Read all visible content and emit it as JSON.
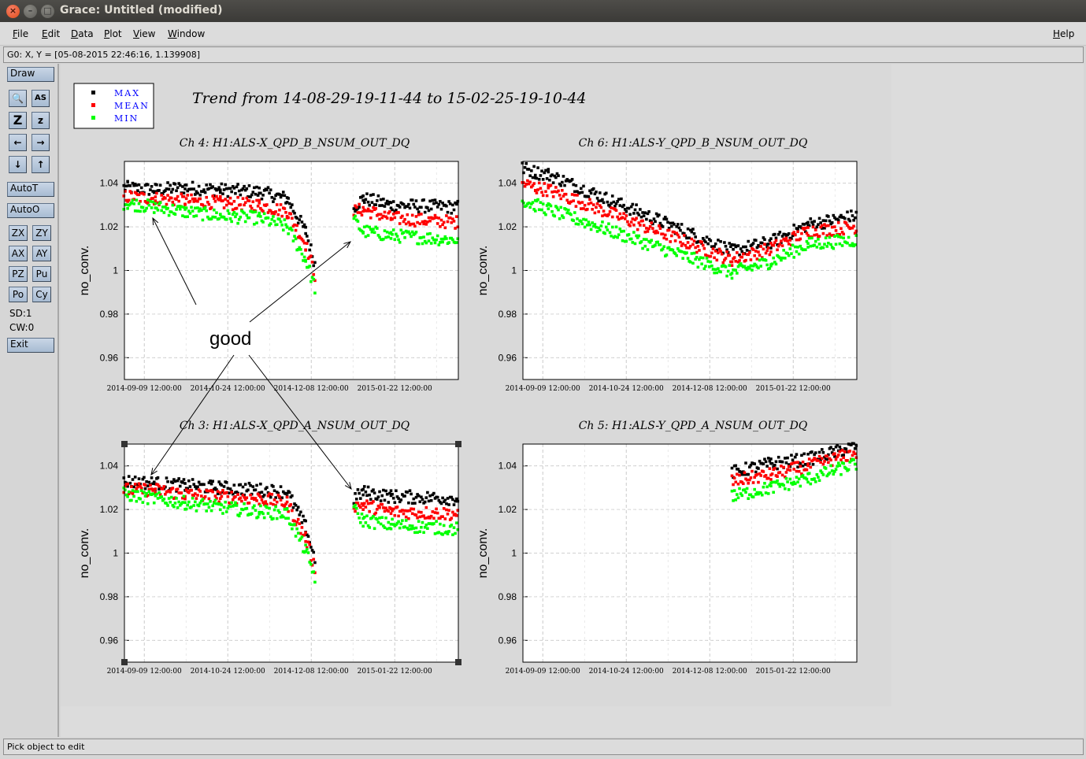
{
  "window": {
    "title": "Grace: Untitled (modified)",
    "close_glyph": "×",
    "minimize_glyph": "–",
    "maximize_glyph": "□"
  },
  "menu": {
    "items": [
      "File",
      "Edit",
      "Data",
      "Plot",
      "View",
      "Window"
    ],
    "help": "Help"
  },
  "locator": "G0: X, Y = [05-08-2015 22:46:16, 1.139908]",
  "toolbar": {
    "draw": "Draw",
    "icons": [
      {
        "name": "zoom-magnifier-icon",
        "glyph": "🔍"
      },
      {
        "name": "text-autoscale-icon",
        "glyph": "AS"
      },
      {
        "name": "zoom-z-icon",
        "glyph": "Z"
      },
      {
        "name": "zoom-z-small-icon",
        "glyph": "z"
      },
      {
        "name": "arrow-left-icon",
        "glyph": "←"
      },
      {
        "name": "arrow-right-icon",
        "glyph": "→"
      },
      {
        "name": "arrow-down-icon",
        "glyph": "↓"
      },
      {
        "name": "arrow-up-icon",
        "glyph": "↑"
      }
    ],
    "autot": "AutoT",
    "autoo": "AutoO",
    "small_buttons": [
      "ZX",
      "ZY",
      "AX",
      "AY",
      "PZ",
      "Pu",
      "Po",
      "Cy"
    ],
    "sd": "SD:1",
    "cw": "CW:0",
    "exit": "Exit"
  },
  "status": "Pick object to edit",
  "figure": {
    "main_title": "Trend from 14-08-29-19-11-44 to 15-02-25-19-10-44",
    "legend": [
      {
        "label": "MAX",
        "color": "#000000"
      },
      {
        "label": "MEAN",
        "color": "#ff0000"
      },
      {
        "label": "MIN",
        "color": "#00ff00"
      }
    ],
    "annotation": "good",
    "colors": {
      "max": "#000000",
      "mean": "#ff0000",
      "min": "#00ff00",
      "legend_text": "#0000ff",
      "background": "#d9d9d9"
    }
  },
  "chart_data": [
    {
      "type": "scatter",
      "title": "Ch 4: H1:ALS-X_QPD_B_NSUM_OUT_DQ",
      "ylabel": "no_conv.",
      "xlabel": "",
      "x_ticks": [
        "2014-09-09 12:00:00",
        "2014-10-24 12:00:00",
        "2014-12-08 12:00:00",
        "2015-01-22 12:00:00"
      ],
      "y_ticks": [
        "0.96",
        "0.98",
        "1",
        "1.02",
        "1.04"
      ],
      "ylim": [
        0.95,
        1.05
      ],
      "grid": true,
      "series": [
        {
          "name": "MAX",
          "x": [
            "2014-08-29",
            "2014-09-15",
            "2014-10-01",
            "2014-10-20",
            "2014-11-10",
            "2014-11-25",
            "2014-12-05",
            "2014-12-10",
            "2014-12-15",
            "2014-12-31",
            "2015-01-05",
            "2015-01-20",
            "2015-02-25"
          ],
          "values": [
            1.038,
            1.037,
            1.038,
            1.037,
            1.036,
            1.033,
            1.018,
            1.003,
            null,
            1.029,
            1.033,
            1.03,
            1.029
          ]
        },
        {
          "name": "MEAN",
          "x": [
            "2014-08-29",
            "2014-09-15",
            "2014-10-01",
            "2014-10-20",
            "2014-11-10",
            "2014-11-25",
            "2014-12-05",
            "2014-12-10",
            "2014-12-15",
            "2014-12-31",
            "2015-01-05",
            "2015-01-20",
            "2015-02-25"
          ],
          "values": [
            1.034,
            1.033,
            1.032,
            1.031,
            1.03,
            1.027,
            1.012,
            0.998,
            null,
            1.027,
            1.028,
            1.024,
            1.022
          ]
        },
        {
          "name": "MIN",
          "x": [
            "2014-08-29",
            "2014-09-15",
            "2014-10-01",
            "2014-10-20",
            "2014-11-10",
            "2014-11-25",
            "2014-12-05",
            "2014-12-10",
            "2014-12-15",
            "2014-12-31",
            "2015-01-05",
            "2015-01-20",
            "2015-02-25"
          ],
          "values": [
            1.031,
            1.029,
            1.027,
            1.025,
            1.024,
            1.02,
            1.005,
            0.992,
            null,
            1.023,
            1.018,
            1.016,
            1.014
          ]
        }
      ]
    },
    {
      "type": "scatter",
      "title": "Ch 6: H1:ALS-Y_QPD_B_NSUM_OUT_DQ",
      "ylabel": "no_conv.",
      "xlabel": "",
      "x_ticks": [
        "2014-09-09 12:00:00",
        "2014-10-24 12:00:00",
        "2014-12-08 12:00:00",
        "2015-01-22 12:00:00"
      ],
      "y_ticks": [
        "0.96",
        "0.98",
        "1",
        "1.02",
        "1.04"
      ],
      "ylim": [
        0.95,
        1.05
      ],
      "grid": true,
      "series": [
        {
          "name": "MAX",
          "x": [
            "2014-08-29",
            "2014-09-05",
            "2014-09-12",
            "2014-12-20",
            "2015-01-10",
            "2015-01-30",
            "2015-02-25"
          ],
          "values": [
            1.047,
            1.045,
            1.044,
            1.009,
            1.013,
            1.021,
            1.025
          ]
        },
        {
          "name": "MEAN",
          "x": [
            "2014-08-29",
            "2014-09-05",
            "2014-09-12",
            "2014-12-20",
            "2015-01-10",
            "2015-01-30",
            "2015-02-25"
          ],
          "values": [
            1.04,
            1.038,
            1.037,
            1.005,
            1.01,
            1.018,
            1.02
          ]
        },
        {
          "name": "MIN",
          "x": [
            "2014-08-29",
            "2014-09-05",
            "2014-09-12",
            "2014-12-20",
            "2015-01-10",
            "2015-01-30",
            "2015-02-25"
          ],
          "values": [
            1.032,
            1.03,
            1.028,
            0.999,
            1.004,
            1.012,
            1.014
          ]
        }
      ]
    },
    {
      "type": "scatter",
      "title": "Ch 3: H1:ALS-X_QPD_A_NSUM_OUT_DQ",
      "ylabel": "no_conv.",
      "xlabel": "",
      "x_ticks": [
        "2014-09-09 12:00:00",
        "2014-10-24 12:00:00",
        "2014-12-08 12:00:00",
        "2015-01-22 12:00:00"
      ],
      "y_ticks": [
        "0.96",
        "0.98",
        "1",
        "1.02",
        "1.04"
      ],
      "ylim": [
        0.95,
        1.05
      ],
      "grid": true,
      "series": [
        {
          "name": "MAX",
          "x": [
            "2014-08-29",
            "2014-09-15",
            "2014-10-01",
            "2014-10-20",
            "2014-11-10",
            "2014-11-25",
            "2014-12-05",
            "2014-12-10",
            "2014-12-15",
            "2014-12-31",
            "2015-01-05",
            "2015-01-20",
            "2015-02-25"
          ],
          "values": [
            1.033,
            1.032,
            1.031,
            1.03,
            1.029,
            1.028,
            1.012,
            0.997,
            null,
            1.025,
            1.028,
            1.026,
            1.025
          ]
        },
        {
          "name": "MEAN",
          "x": [
            "2014-08-29",
            "2014-09-15",
            "2014-10-01",
            "2014-10-20",
            "2014-11-10",
            "2014-11-25",
            "2014-12-05",
            "2014-12-10",
            "2014-12-15",
            "2014-12-31",
            "2015-01-05",
            "2015-01-20",
            "2015-02-25"
          ],
          "values": [
            1.029,
            1.029,
            1.027,
            1.026,
            1.025,
            1.023,
            1.007,
            0.993,
            null,
            1.022,
            1.022,
            1.019,
            1.018
          ]
        },
        {
          "name": "MIN",
          "x": [
            "2014-08-29",
            "2014-09-15",
            "2014-10-01",
            "2014-10-20",
            "2014-11-10",
            "2014-11-25",
            "2014-12-05",
            "2014-12-10",
            "2014-12-15",
            "2014-12-31",
            "2015-01-05",
            "2015-01-20",
            "2015-02-25"
          ],
          "values": [
            1.027,
            1.025,
            1.023,
            1.021,
            1.019,
            1.018,
            1.001,
            0.989,
            null,
            1.02,
            1.015,
            1.013,
            1.011
          ]
        }
      ]
    },
    {
      "type": "scatter",
      "title": "Ch 5: H1:ALS-Y_QPD_A_NSUM_OUT_DQ",
      "ylabel": "no_conv.",
      "xlabel": "",
      "x_ticks": [
        "2014-09-09 12:00:00",
        "2014-10-24 12:00:00",
        "2014-12-08 12:00:00",
        "2015-01-22 12:00:00"
      ],
      "y_ticks": [
        "0.96",
        "0.98",
        "1",
        "1.02",
        "1.04"
      ],
      "ylim": [
        0.95,
        1.05
      ],
      "grid": true,
      "series": [
        {
          "name": "MAX",
          "x": [
            "2014-12-20",
            "2015-01-10",
            "2015-01-30",
            "2015-02-25"
          ],
          "values": [
            1.037,
            1.041,
            1.043,
            1.049
          ]
        },
        {
          "name": "MEAN",
          "x": [
            "2014-12-20",
            "2015-01-10",
            "2015-01-30",
            "2015-02-25"
          ],
          "values": [
            1.033,
            1.036,
            1.04,
            1.046
          ]
        },
        {
          "name": "MIN",
          "x": [
            "2014-12-20",
            "2015-01-10",
            "2015-01-30",
            "2015-02-25"
          ],
          "values": [
            1.026,
            1.03,
            1.034,
            1.041
          ]
        }
      ]
    }
  ]
}
